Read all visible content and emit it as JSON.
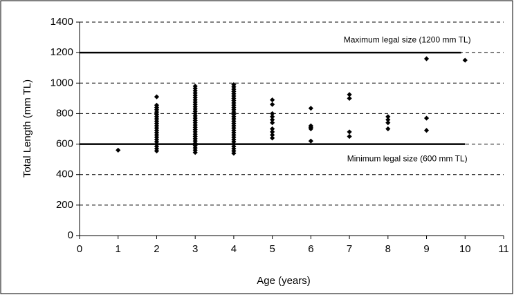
{
  "chart_data": {
    "type": "scatter",
    "xlabel": "Age (years)",
    "ylabel": "Total Length (mm TL)",
    "color": "#000000",
    "marker": "diamond",
    "x": [
      1,
      2,
      2,
      2,
      2,
      2,
      2,
      2,
      2,
      2,
      2,
      2,
      2,
      2,
      2,
      2,
      2,
      2,
      2,
      2,
      2,
      2,
      2,
      3,
      3,
      3,
      3,
      3,
      3,
      3,
      3,
      3,
      3,
      3,
      3,
      3,
      3,
      3,
      3,
      3,
      3,
      3,
      3,
      3,
      3,
      3,
      3,
      3,
      3,
      3,
      3,
      3,
      3,
      4,
      4,
      4,
      4,
      4,
      4,
      4,
      4,
      4,
      4,
      4,
      4,
      4,
      4,
      4,
      4,
      4,
      4,
      4,
      4,
      4,
      4,
      4,
      4,
      4,
      4,
      4,
      4,
      4,
      4,
      4,
      5,
      5,
      5,
      5,
      5,
      5,
      5,
      5,
      5,
      5,
      6,
      6,
      6,
      6,
      6,
      7,
      7,
      7,
      7,
      8,
      8,
      8,
      8,
      9,
      9,
      9,
      10
    ],
    "values": [
      560,
      555,
      570,
      585,
      600,
      615,
      630,
      645,
      660,
      675,
      690,
      705,
      720,
      735,
      750,
      765,
      780,
      795,
      810,
      825,
      840,
      855,
      910,
      545,
      560,
      575,
      590,
      605,
      620,
      635,
      650,
      665,
      680,
      695,
      710,
      725,
      740,
      755,
      770,
      785,
      800,
      815,
      830,
      845,
      860,
      875,
      890,
      905,
      920,
      935,
      950,
      965,
      980,
      540,
      555,
      570,
      585,
      600,
      615,
      630,
      645,
      660,
      675,
      690,
      705,
      720,
      735,
      750,
      765,
      780,
      795,
      810,
      825,
      840,
      855,
      870,
      885,
      900,
      915,
      930,
      945,
      960,
      975,
      990,
      890,
      860,
      800,
      780,
      760,
      740,
      700,
      680,
      660,
      640,
      835,
      720,
      710,
      700,
      620,
      925,
      900,
      680,
      650,
      780,
      760,
      740,
      700,
      1160,
      770,
      690,
      1150
    ],
    "reference_lines": [
      {
        "value": 1200,
        "label": "Maximum legal size (1200 mm TL)",
        "xrange": [
          0,
          9.9
        ]
      },
      {
        "value": 600,
        "label": "Minimum legal size (600 mm TL)",
        "xrange": [
          0,
          10
        ]
      }
    ],
    "xlim": [
      0,
      11
    ],
    "xticks": [
      0,
      1,
      2,
      3,
      4,
      5,
      6,
      7,
      8,
      9,
      10,
      11
    ],
    "ylim": [
      0,
      1400
    ],
    "yticks": [
      0,
      200,
      400,
      600,
      800,
      1000,
      1200,
      1400
    ],
    "grid": true
  }
}
